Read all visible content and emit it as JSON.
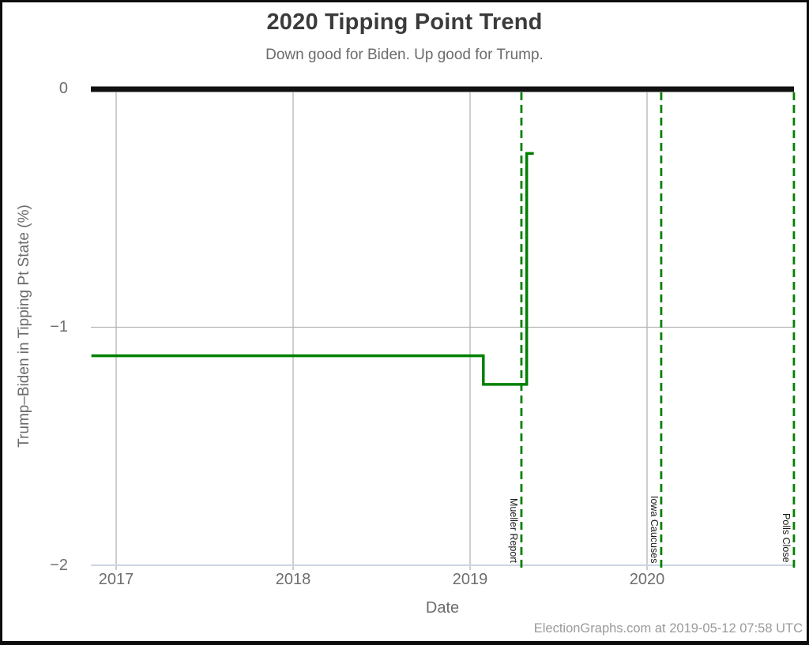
{
  "footer": {
    "credit": "ElectionGraphs.com at 2019-05-12 07:58 UTC"
  },
  "chart_data": {
    "type": "line",
    "title": "2020 Tipping Point Trend",
    "subtitle": "Down good for Biden. Up good for Trump.",
    "xlabel": "Date",
    "ylabel": "Trump–Biden in Tipping Pt State (%)",
    "x_domain": [
      2016.86,
      2020.83
    ],
    "y_domain": [
      -2,
      0
    ],
    "x_ticks": [
      2017,
      2018,
      2019,
      2020
    ],
    "x_tick_labels": [
      "2017",
      "2018",
      "2019",
      "2020"
    ],
    "y_ticks": [
      0,
      -1,
      -2
    ],
    "y_tick_labels": [
      "0",
      "−1",
      "−2"
    ],
    "grid": true,
    "grid_color": "#b3b3b3",
    "legend": "none",
    "y_gridlines": [
      {
        "value": 0,
        "color": "#111111",
        "width": 7,
        "role": "zero-line"
      },
      {
        "value": -1,
        "color": "#b3b3b3",
        "width": 1.3,
        "role": "gridline"
      },
      {
        "value": -2,
        "color": "#ccd5e3",
        "width": 2,
        "role": "axis-line"
      }
    ],
    "series": [
      {
        "name": "Trump-Biden margin in tipping point state",
        "color": "#008000",
        "width": 3.5,
        "points": [
          [
            2016.86,
            -1.12
          ],
          [
            2019.075,
            -1.12
          ],
          [
            2019.075,
            -1.24
          ],
          [
            2019.32,
            -1.24
          ],
          [
            2019.32,
            -0.27
          ],
          [
            2019.36,
            -0.27
          ]
        ]
      }
    ],
    "event_lines": [
      {
        "label": "Mueller Report",
        "x": 2019.29,
        "color": "#008000",
        "style": "dashed"
      },
      {
        "label": "Iowa Caucuses",
        "x": 2020.08,
        "color": "#008000",
        "style": "dashed"
      },
      {
        "label": "Polls Close",
        "x": 2020.83,
        "color": "#008000",
        "style": "dashed"
      }
    ]
  }
}
